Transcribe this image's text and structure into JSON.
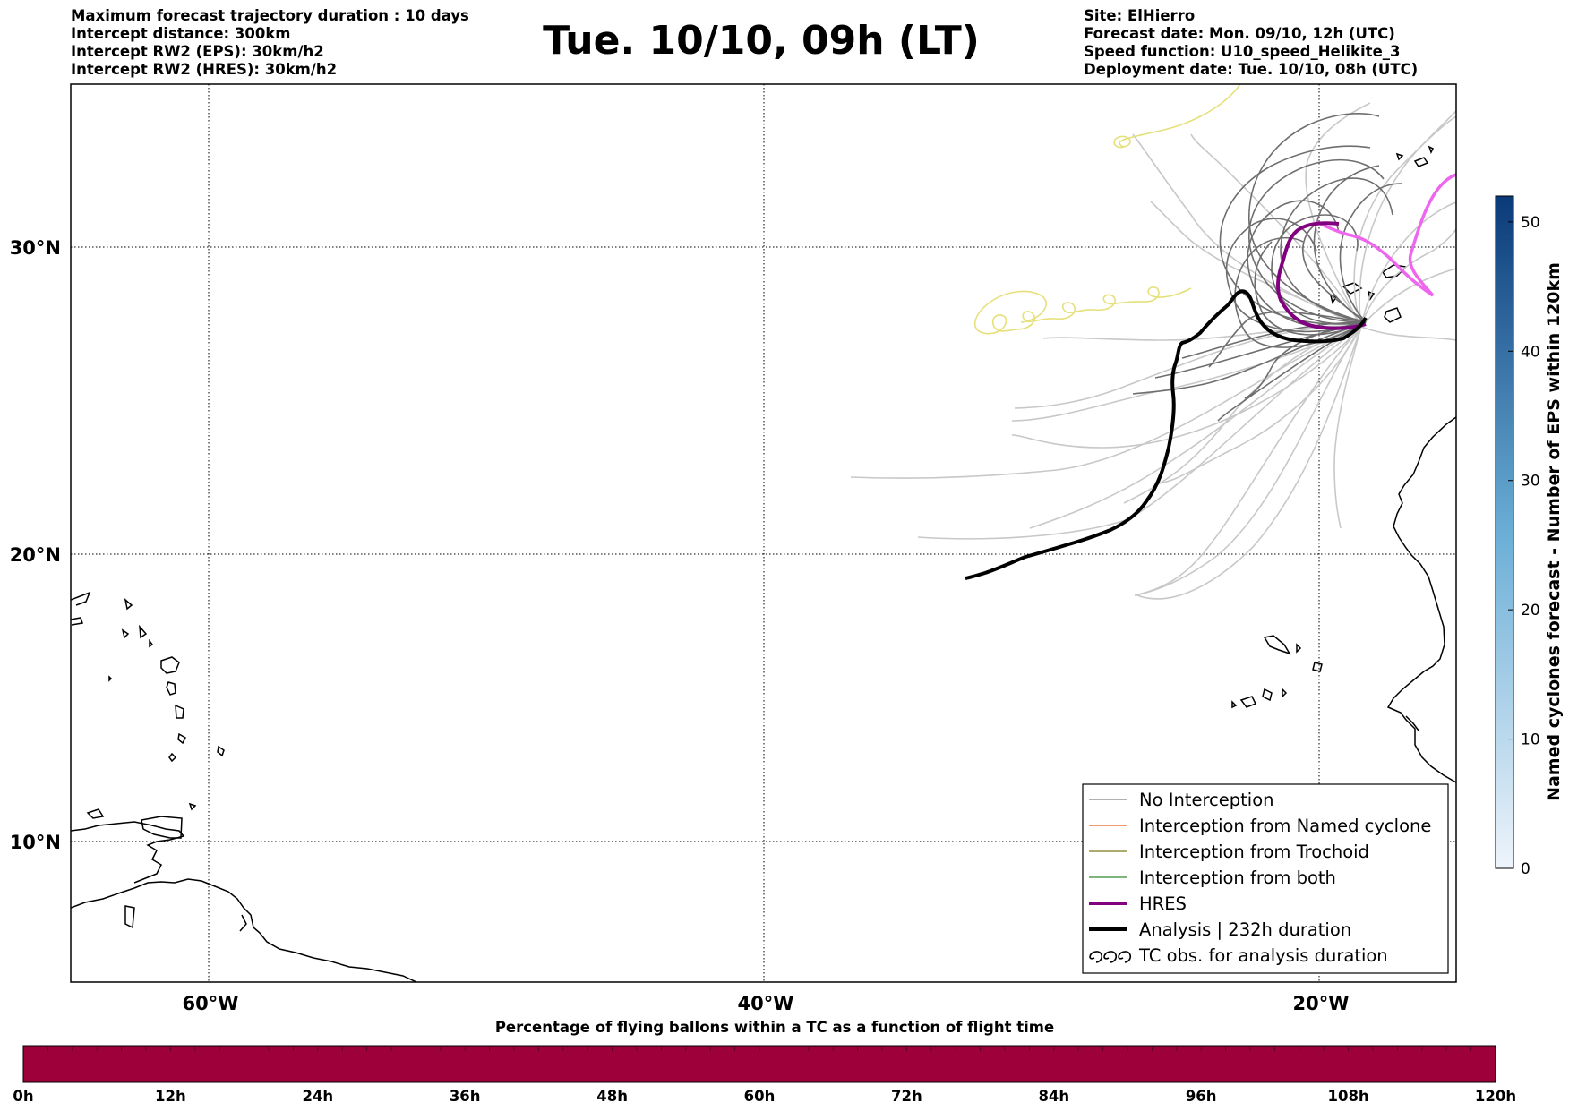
{
  "header": {
    "left_lines": [
      "Maximum forecast trajectory duration : 10 days",
      "Intercept distance: 300km",
      "Intercept RW2 (EPS):  30km/h2",
      "Intercept RW2 (HRES): 30km/h2"
    ],
    "title": "Tue. 10/10, 09h (LT)",
    "right_lines": [
      "Site: ElHierro",
      "Forecast date: Mon. 09/10, 12h (UTC)",
      "Speed function: U10_speed_Helikite_3",
      "Deployment date: Tue. 10/10, 08h (UTC)"
    ]
  },
  "map": {
    "lat_labels": [
      "30°N",
      "20°N",
      "10°N"
    ],
    "lon_labels": [
      "60°W",
      "40°W",
      "20°W"
    ],
    "gridlines": true,
    "colors": {
      "eps_light": "#c8c8c8",
      "eps_dark": "#6e6e6e",
      "hres": "#800080",
      "hres_pink": "#ee66ee",
      "analysis": "#000000",
      "tc_obs": "#e6e07a",
      "named_cyclone": "#e8601c",
      "trochoid": "#7b7b1c",
      "both": "#2e8b2e"
    }
  },
  "legend": {
    "items": [
      {
        "label": "No Interception",
        "color": "#808080",
        "style": "thin"
      },
      {
        "label": "Interception from Named cyclone",
        "color": "#e8601c",
        "style": "thin"
      },
      {
        "label": "Interception from Trochoid",
        "color": "#7b7b1c",
        "style": "thin"
      },
      {
        "label": "Interception from both",
        "color": "#2e8b2e",
        "style": "thin"
      },
      {
        "label": "HRES",
        "color": "#800080",
        "style": "thick"
      },
      {
        "label": "Analysis | 232h duration",
        "color": "#000000",
        "style": "thick"
      },
      {
        "label": "TC obs. for analysis duration",
        "color": "#000000",
        "style": "symbol"
      }
    ]
  },
  "colorbar_right": {
    "title": "Named cyclones forecast - Number of EPS within 120km",
    "ticks": [
      "0",
      "10",
      "20",
      "30",
      "40",
      "50"
    ],
    "max": 52,
    "color_low": "#eef4fb",
    "color_high": "#0a3a78"
  },
  "colorbar_bottom": {
    "title": "Percentage of flying ballons within a TC as a function of flight time",
    "ticks": [
      "0h",
      "12h",
      "24h",
      "36h",
      "48h",
      "60h",
      "72h",
      "84h",
      "96h",
      "108h",
      "120h"
    ],
    "fill_color": "#9e003a"
  }
}
